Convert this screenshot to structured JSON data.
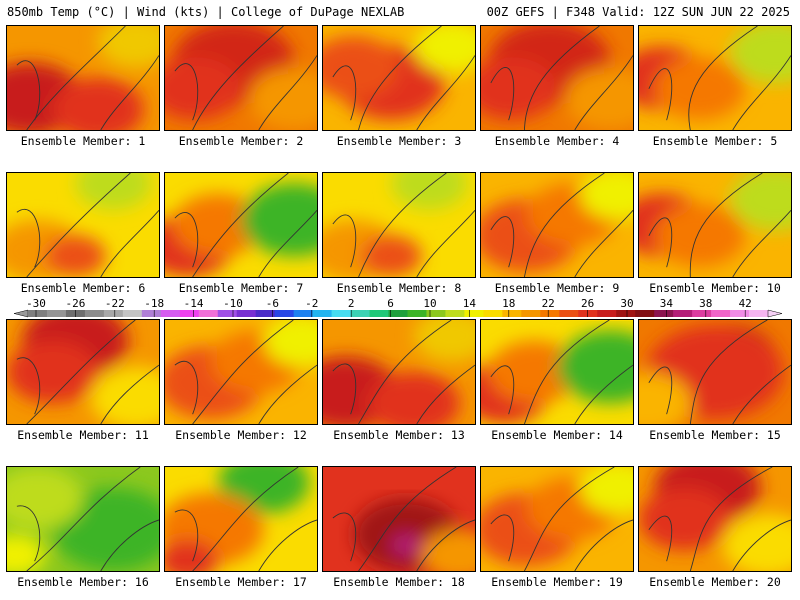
{
  "header": {
    "left": "850mb Temp (°C) | Wind (kts) | College of DuPage NEXLAB",
    "right": "00Z GEFS | F348 Valid: 12Z SUN JUN 22 2025"
  },
  "colorbar": {
    "labels": [
      "-30",
      "-26",
      "-22",
      "-18",
      "-14",
      "-10",
      "-6",
      "-2",
      "2",
      "6",
      "10",
      "14",
      "18",
      "22",
      "26",
      "30",
      "34",
      "38",
      "42"
    ],
    "colors": [
      "#7f7f7f",
      "#959595",
      "#6e6e6e",
      "#8c8c8c",
      "#a8a8a8",
      "#c4c4c4",
      "#b07fd6",
      "#d65cf0",
      "#ef42ef",
      "#f070d8",
      "#a050e6",
      "#7830d2",
      "#4b2cc8",
      "#2846e6",
      "#1d80f0",
      "#23b4f0",
      "#46dcf0",
      "#3cd2b4",
      "#20c878",
      "#1ea03c",
      "#3cb428",
      "#8cc81e",
      "#bedc1e",
      "#f0f000",
      "#fadc00",
      "#fab400",
      "#f59600",
      "#f57800",
      "#eb5014",
      "#e1321e",
      "#c81e1e",
      "#a01414",
      "#820f14",
      "#8c1450",
      "#b41e78",
      "#dc3ca0",
      "#f064c8",
      "#f08ce6",
      "#f5b4f0"
    ]
  },
  "panels": [
    {
      "label": "Ensemble Member: 1",
      "scheme": "hot-west"
    },
    {
      "label": "Ensemble Member: 2",
      "scheme": "hot"
    },
    {
      "label": "Ensemble Member: 3",
      "scheme": "hot-center"
    },
    {
      "label": "Ensemble Member: 4",
      "scheme": "hot"
    },
    {
      "label": "Ensemble Member: 5",
      "scheme": "warm-east-green"
    },
    {
      "label": "Ensemble Member: 6",
      "scheme": "warm-yellow"
    },
    {
      "label": "Ensemble Member: 7",
      "scheme": "cool-east"
    },
    {
      "label": "Ensemble Member: 8",
      "scheme": "warm-yellow"
    },
    {
      "label": "Ensemble Member: 9",
      "scheme": "warm"
    },
    {
      "label": "Ensemble Member: 10",
      "scheme": "warm-east-green"
    },
    {
      "label": "Ensemble Member: 11",
      "scheme": "hot-north"
    },
    {
      "label": "Ensemble Member: 12",
      "scheme": "warm"
    },
    {
      "label": "Ensemble Member: 13",
      "scheme": "hot-west"
    },
    {
      "label": "Ensemble Member: 14",
      "scheme": "cool-east"
    },
    {
      "label": "Ensemble Member: 15",
      "scheme": "hot-east"
    },
    {
      "label": "Ensemble Member: 16",
      "scheme": "cool"
    },
    {
      "label": "Ensemble Member: 17",
      "scheme": "cool-north"
    },
    {
      "label": "Ensemble Member: 18",
      "scheme": "very-hot"
    },
    {
      "label": "Ensemble Member: 19",
      "scheme": "warm"
    },
    {
      "label": "Ensemble Member: 20",
      "scheme": "hot-north"
    }
  ]
}
